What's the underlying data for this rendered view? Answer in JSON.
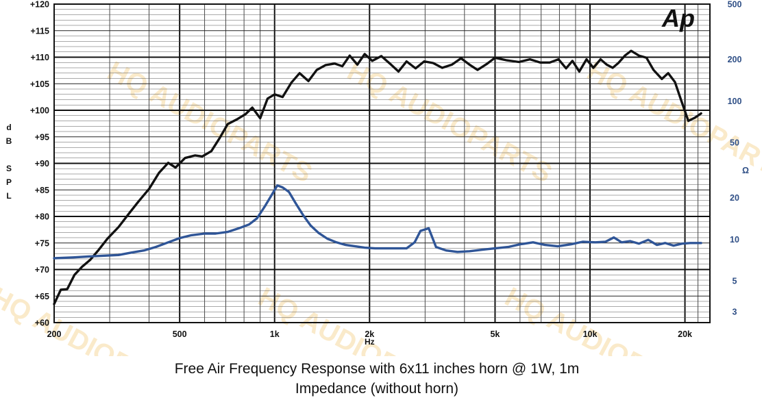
{
  "chart_data": {
    "type": "line",
    "title": "Free Air Frequency Response with 6x11 inches horn @ 1W, 1m",
    "subtitle": "Impedance (without horn)",
    "logo": "Ap",
    "watermark": "HQ AUDIOPARTS",
    "xlabel": "Hz",
    "xscale": "log",
    "xlim": [
      200,
      24000
    ],
    "x_ticks": [
      {
        "v": 200,
        "label": "200"
      },
      {
        "v": 500,
        "label": "500"
      },
      {
        "v": 1000,
        "label": "1k"
      },
      {
        "v": 2000,
        "label": "2k"
      },
      {
        "v": 5000,
        "label": "5k"
      },
      {
        "v": 10000,
        "label": "10k"
      },
      {
        "v": 20000,
        "label": "20k"
      }
    ],
    "ylabel_left": [
      "d",
      "B",
      "S",
      "P",
      "L"
    ],
    "ylim_left": [
      60,
      120
    ],
    "y_ticks_left": [
      {
        "v": 120,
        "label": "+120"
      },
      {
        "v": 115,
        "label": "+115"
      },
      {
        "v": 110,
        "label": "+110"
      },
      {
        "v": 105,
        "label": "+105"
      },
      {
        "v": 100,
        "label": "+100"
      },
      {
        "v": 95,
        "label": "+95"
      },
      {
        "v": 90,
        "label": "+90"
      },
      {
        "v": 85,
        "label": "+85"
      },
      {
        "v": 80,
        "label": "+80"
      },
      {
        "v": 75,
        "label": "+75"
      },
      {
        "v": 70,
        "label": "+70"
      },
      {
        "v": 65,
        "label": "+65"
      },
      {
        "v": 60,
        "label": "+60"
      }
    ],
    "ylabel_right": "Ω",
    "yscale_right": "log",
    "ylim_right": [
      2.5,
      500
    ],
    "y_ticks_right": [
      {
        "v": 500,
        "label": "500"
      },
      {
        "v": 200,
        "label": "200"
      },
      {
        "v": 100,
        "label": "100"
      },
      {
        "v": 50,
        "label": "50"
      },
      {
        "v": 20,
        "label": "20"
      },
      {
        "v": 10,
        "label": "10"
      },
      {
        "v": 5,
        "label": "5"
      },
      {
        "v": 3,
        "label": "3"
      }
    ],
    "grid": true,
    "series": [
      {
        "axis": "left",
        "color": "#111111",
        "points": [
          [
            200,
            63.5
          ],
          [
            210,
            66.2
          ],
          [
            220,
            66.3
          ],
          [
            232,
            69
          ],
          [
            245,
            70.5
          ],
          [
            260,
            71.8
          ],
          [
            275,
            73.5
          ],
          [
            295,
            75.8
          ],
          [
            320,
            78
          ],
          [
            345,
            80.5
          ],
          [
            370,
            82.8
          ],
          [
            400,
            85.2
          ],
          [
            430,
            88.2
          ],
          [
            460,
            90.1
          ],
          [
            485,
            89.2
          ],
          [
            520,
            91
          ],
          [
            560,
            91.5
          ],
          [
            590,
            91.3
          ],
          [
            630,
            92.3
          ],
          [
            670,
            94.8
          ],
          [
            710,
            97.4
          ],
          [
            760,
            98.3
          ],
          [
            810,
            99.3
          ],
          [
            850,
            100.5
          ],
          [
            900,
            98.5
          ],
          [
            950,
            102.2
          ],
          [
            1000,
            103
          ],
          [
            1060,
            102.5
          ],
          [
            1130,
            105.2
          ],
          [
            1200,
            107
          ],
          [
            1280,
            105.5
          ],
          [
            1360,
            107.6
          ],
          [
            1450,
            108.5
          ],
          [
            1550,
            108.8
          ],
          [
            1640,
            108.3
          ],
          [
            1730,
            110.3
          ],
          [
            1830,
            108.6
          ],
          [
            1930,
            110.6
          ],
          [
            2040,
            109.3
          ],
          [
            2180,
            110.2
          ],
          [
            2320,
            108.8
          ],
          [
            2470,
            107.3
          ],
          [
            2620,
            109.2
          ],
          [
            2800,
            107.9
          ],
          [
            2980,
            109.2
          ],
          [
            3180,
            108.9
          ],
          [
            3400,
            108
          ],
          [
            3650,
            108.6
          ],
          [
            3900,
            109.8
          ],
          [
            4150,
            108.6
          ],
          [
            4400,
            107.6
          ],
          [
            4700,
            108.7
          ],
          [
            5000,
            109.9
          ],
          [
            5450,
            109.4
          ],
          [
            5950,
            109.1
          ],
          [
            6450,
            109.6
          ],
          [
            6950,
            109
          ],
          [
            7450,
            109
          ],
          [
            7950,
            109.6
          ],
          [
            8400,
            107.9
          ],
          [
            8800,
            109.3
          ],
          [
            9250,
            107.3
          ],
          [
            9750,
            109.6
          ],
          [
            10250,
            108
          ],
          [
            10800,
            109.6
          ],
          [
            11300,
            108.6
          ],
          [
            11800,
            108
          ],
          [
            12300,
            108.9
          ],
          [
            12900,
            110.3
          ],
          [
            13500,
            111.2
          ],
          [
            14300,
            110.3
          ],
          [
            15100,
            109.9
          ],
          [
            15900,
            107.6
          ],
          [
            16900,
            105.9
          ],
          [
            17700,
            107
          ],
          [
            18600,
            105.3
          ],
          [
            19500,
            101.7
          ],
          [
            20500,
            98
          ],
          [
            21500,
            98.6
          ],
          [
            22500,
            99.4
          ]
        ]
      },
      {
        "axis": "right",
        "color": "#2f5597",
        "points": [
          [
            200,
            7.3
          ],
          [
            230,
            7.4
          ],
          [
            255,
            7.5
          ],
          [
            285,
            7.6
          ],
          [
            320,
            7.7
          ],
          [
            350,
            8
          ],
          [
            385,
            8.3
          ],
          [
            420,
            8.8
          ],
          [
            460,
            9.5
          ],
          [
            500,
            10.2
          ],
          [
            545,
            10.7
          ],
          [
            600,
            11
          ],
          [
            650,
            11
          ],
          [
            710,
            11.3
          ],
          [
            770,
            12
          ],
          [
            830,
            12.8
          ],
          [
            880,
            14.2
          ],
          [
            930,
            17.2
          ],
          [
            980,
            21
          ],
          [
            1020,
            24.5
          ],
          [
            1060,
            23.7
          ],
          [
            1110,
            22
          ],
          [
            1170,
            18
          ],
          [
            1230,
            15
          ],
          [
            1300,
            12.6
          ],
          [
            1380,
            11.1
          ],
          [
            1470,
            10.1
          ],
          [
            1570,
            9.5
          ],
          [
            1680,
            9.1
          ],
          [
            1800,
            8.9
          ],
          [
            1930,
            8.7
          ],
          [
            2080,
            8.6
          ],
          [
            2250,
            8.6
          ],
          [
            2430,
            8.6
          ],
          [
            2620,
            8.6
          ],
          [
            2780,
            9.5
          ],
          [
            2900,
            11.5
          ],
          [
            3080,
            12
          ],
          [
            3250,
            8.8
          ],
          [
            3500,
            8.3
          ],
          [
            3800,
            8.1
          ],
          [
            4150,
            8.2
          ],
          [
            4550,
            8.4
          ],
          [
            5000,
            8.6
          ],
          [
            5500,
            8.8
          ],
          [
            6000,
            9.2
          ],
          [
            6600,
            9.5
          ],
          [
            7200,
            9.1
          ],
          [
            7900,
            8.9
          ],
          [
            8700,
            9.2
          ],
          [
            9500,
            9.6
          ],
          [
            10400,
            9.5
          ],
          [
            11200,
            9.6
          ],
          [
            11900,
            10.3
          ],
          [
            12600,
            9.5
          ],
          [
            13400,
            9.7
          ],
          [
            14300,
            9.3
          ],
          [
            15300,
            9.9
          ],
          [
            16300,
            9.1
          ],
          [
            17300,
            9.4
          ],
          [
            18400,
            9
          ],
          [
            19600,
            9.3
          ],
          [
            20800,
            9.4
          ],
          [
            22500,
            9.4
          ]
        ]
      }
    ]
  },
  "caption": {
    "line1": "Free Air Frequency Response with 6x11 inches horn @ 1W, 1m",
    "line2": "Impedance (without horn)"
  },
  "colors": {
    "spl_line": "#111111",
    "impedance_line": "#2f5597",
    "right_axis_text": "#2f4f86",
    "watermark": "#f6d9a0"
  }
}
